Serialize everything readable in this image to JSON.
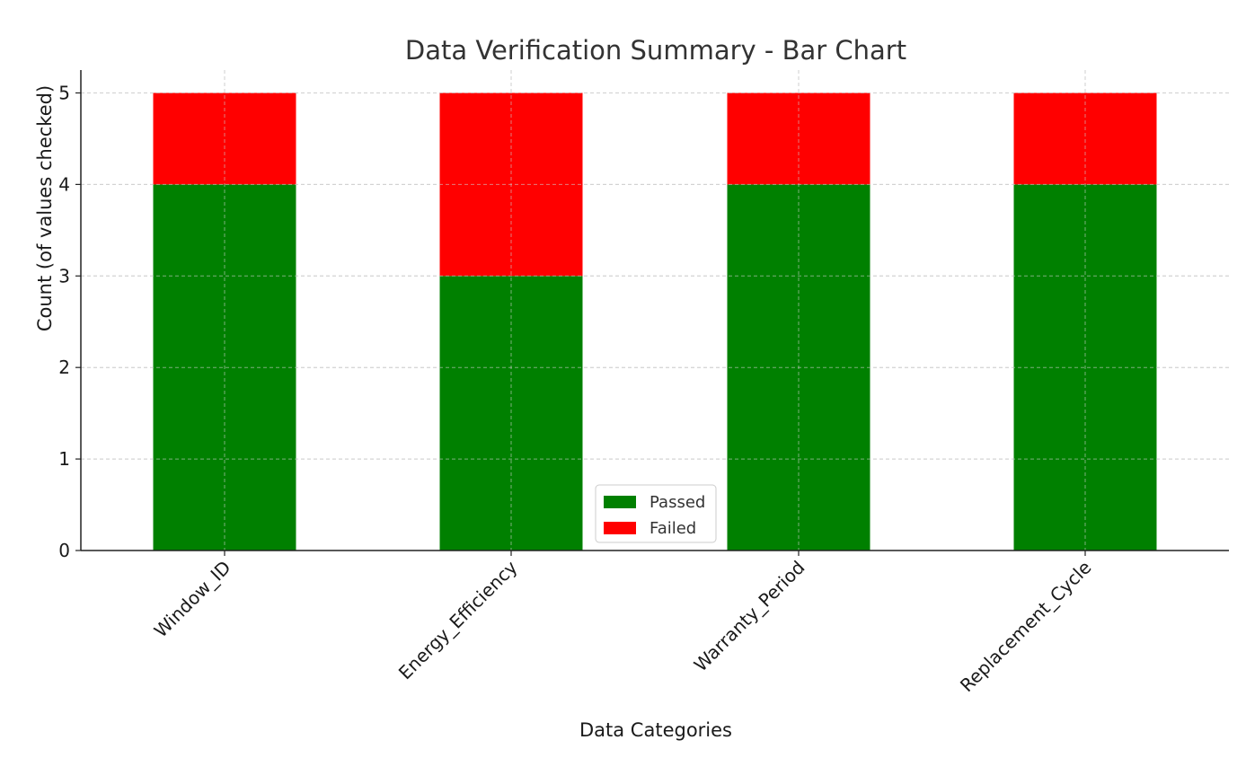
{
  "chart_data": {
    "type": "bar",
    "stacked": true,
    "title": "Data Verification Summary - Bar Chart",
    "xlabel": "Data Categories",
    "ylabel": "Count  (of values checked)",
    "categories": [
      "Window_ID",
      "Energy_Efficiency",
      "Warranty_Period",
      "Replacement_Cycle"
    ],
    "series": [
      {
        "name": "Passed",
        "values": [
          4,
          3,
          4,
          4
        ],
        "color": "#008000"
      },
      {
        "name": "Failed",
        "values": [
          1,
          2,
          1,
          1
        ],
        "color": "#ff0000"
      }
    ],
    "ylim": [
      0,
      5.25
    ],
    "yticks": [
      0,
      1,
      2,
      3,
      4,
      5
    ],
    "grid": true,
    "legend_position": "bottom-center",
    "x_tick_rotation_deg": 45
  }
}
